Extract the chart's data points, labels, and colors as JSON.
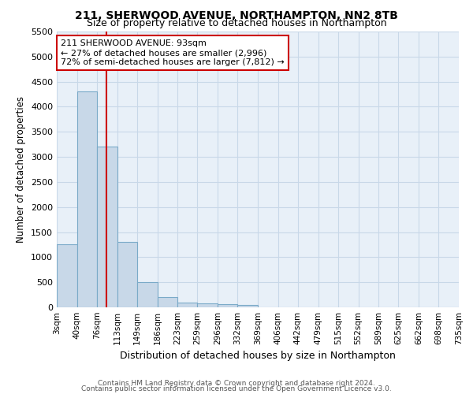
{
  "title1": "211, SHERWOOD AVENUE, NORTHAMPTON, NN2 8TB",
  "title2": "Size of property relative to detached houses in Northampton",
  "xlabel": "Distribution of detached houses by size in Northampton",
  "ylabel": "Number of detached properties",
  "annotation_title": "211 SHERWOOD AVENUE: 93sqm",
  "annotation_line2": "← 27% of detached houses are smaller (2,996)",
  "annotation_line3": "72% of semi-detached houses are larger (7,812) →",
  "property_size_sqm": 93,
  "bin_edges": [
    3,
    40,
    76,
    113,
    149,
    186,
    223,
    259,
    296,
    332,
    369,
    406,
    442,
    479,
    515,
    552,
    589,
    625,
    662,
    698,
    735
  ],
  "bin_counts": [
    1250,
    4300,
    3200,
    1300,
    500,
    200,
    100,
    75,
    60,
    50,
    0,
    0,
    0,
    0,
    0,
    0,
    0,
    0,
    0,
    0
  ],
  "bar_color": "#c8d8e8",
  "bar_edge_color": "#7aaac8",
  "vline_color": "#cc0000",
  "vline_x": 93,
  "annotation_box_edgecolor": "#cc0000",
  "annotation_text_color": "#000000",
  "ylim_max": 5500,
  "yticks": [
    0,
    500,
    1000,
    1500,
    2000,
    2500,
    3000,
    3500,
    4000,
    4500,
    5000,
    5500
  ],
  "grid_color": "#c8d8e8",
  "bg_color": "#e8f0f8",
  "footer1": "Contains HM Land Registry data © Crown copyright and database right 2024.",
  "footer2": "Contains public sector information licensed under the Open Government Licence v3.0."
}
